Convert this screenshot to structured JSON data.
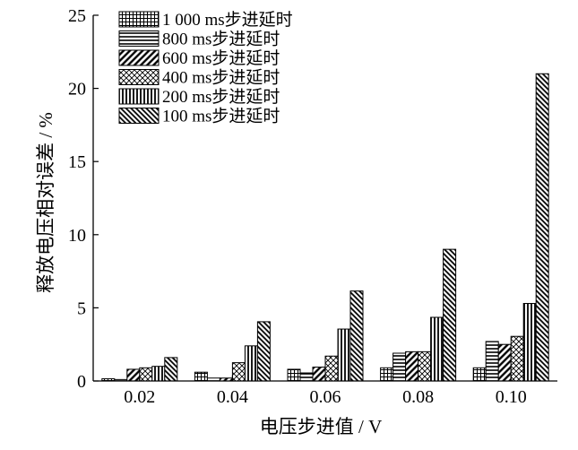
{
  "chart_data": {
    "type": "bar",
    "xlabel": "电压步进值 / V",
    "ylabel": "释放电压相对误差 / %",
    "ylim": [
      0,
      25
    ],
    "yticks": [
      "0",
      "5",
      "10",
      "15",
      "20",
      "25"
    ],
    "categories": [
      "0.02",
      "0.04",
      "0.06",
      "0.08",
      "0.10"
    ],
    "grid": false,
    "legend_position": "top-left",
    "series": [
      {
        "name": "1 000 ms步进延时",
        "pattern": "grid",
        "values": [
          0.15,
          0.6,
          0.8,
          0.9,
          0.9
        ]
      },
      {
        "name": "800 ms步进延时",
        "pattern": "horizontal",
        "values": [
          0.1,
          0.2,
          0.55,
          1.9,
          2.7
        ]
      },
      {
        "name": "600 ms步进延时",
        "pattern": "diagonal-down",
        "values": [
          0.8,
          0.2,
          0.95,
          2.0,
          2.5
        ]
      },
      {
        "name": "400 ms步进延时",
        "pattern": "crosshatch",
        "values": [
          0.9,
          1.25,
          1.7,
          2.0,
          3.05
        ]
      },
      {
        "name": "200 ms步进延时",
        "pattern": "vertical",
        "values": [
          1.0,
          2.4,
          3.55,
          4.35,
          5.3
        ]
      },
      {
        "name": "100 ms步进延时",
        "pattern": "diagonal-up-dense",
        "values": [
          1.6,
          4.05,
          6.15,
          9.0,
          21.0
        ]
      }
    ]
  }
}
